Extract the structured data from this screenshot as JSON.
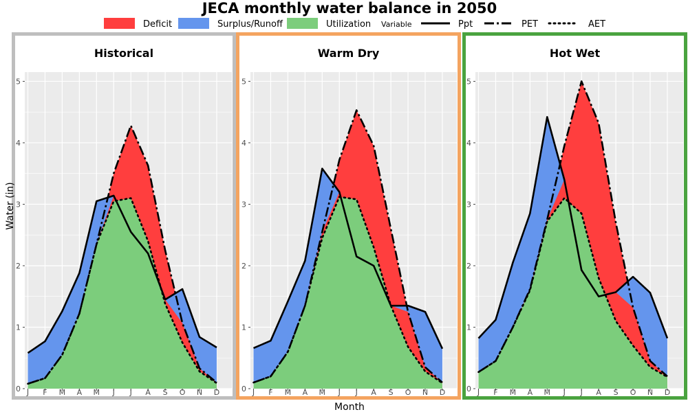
{
  "chart_data": {
    "type": "area",
    "title": "JECA monthly water balance in 2050",
    "xlabel": "Month",
    "ylabel": "Water (in)",
    "ylim": [
      0,
      5.15
    ],
    "yticks": [
      0,
      1,
      2,
      3,
      4,
      5
    ],
    "categories": [
      "J",
      "F",
      "M",
      "A",
      "M",
      "J",
      "J",
      "A",
      "S",
      "O",
      "N",
      "D"
    ],
    "legend": {
      "fill_entries": [
        {
          "label": "Deficit",
          "color": "#ff3e3e"
        },
        {
          "label": "Surplus/Runoff",
          "color": "#6495ed"
        },
        {
          "label": "Utilization",
          "color": "#7ccd7c"
        }
      ],
      "line_title": "Variable",
      "line_entries": [
        {
          "label": "Ppt",
          "style": "solid"
        },
        {
          "label": "PET",
          "style": "dashdot"
        },
        {
          "label": "AET",
          "style": "dotted"
        }
      ],
      "placement": "top"
    },
    "colors": {
      "deficit": "#ff3e3e",
      "surplus": "#6495ed",
      "utilization": "#7ccd7c",
      "panel_bg": "#ebebeb",
      "grid": "#ffffff"
    },
    "panels": [
      {
        "title": "Historical",
        "border_color": "#bebebe",
        "series": [
          {
            "name": "Ppt",
            "values": [
              0.58,
              0.77,
              1.26,
              1.88,
              3.05,
              3.14,
              2.55,
              2.2,
              1.45,
              1.62,
              0.84,
              0.67
            ]
          },
          {
            "name": "PET",
            "values": [
              0.08,
              0.17,
              0.55,
              1.22,
              2.35,
              3.5,
              4.28,
              3.63,
              2.25,
              1.07,
              0.33,
              0.1
            ]
          },
          {
            "name": "AET",
            "values": [
              0.08,
              0.17,
              0.55,
              1.22,
              2.35,
              3.05,
              3.1,
              2.4,
              1.38,
              0.75,
              0.28,
              0.09
            ]
          }
        ]
      },
      {
        "title": "Warm Dry",
        "border_color": "#f4a460",
        "series": [
          {
            "name": "Ppt",
            "values": [
              0.66,
              0.78,
              1.42,
              2.08,
              3.58,
              3.2,
              2.15,
              2.0,
              1.35,
              1.35,
              1.25,
              0.65
            ]
          },
          {
            "name": "PET",
            "values": [
              0.1,
              0.2,
              0.6,
              1.35,
              2.55,
              3.72,
              4.53,
              3.95,
              2.6,
              1.25,
              0.35,
              0.1
            ]
          },
          {
            "name": "AET",
            "values": [
              0.1,
              0.2,
              0.6,
              1.35,
              2.45,
              3.12,
              3.08,
              2.3,
              1.35,
              0.68,
              0.28,
              0.09
            ]
          }
        ]
      },
      {
        "title": "Hot Wet",
        "border_color": "#4aa33f",
        "series": [
          {
            "name": "Ppt",
            "values": [
              0.82,
              1.12,
              2.05,
              2.85,
              4.42,
              3.4,
              1.93,
              1.5,
              1.57,
              1.82,
              1.56,
              0.82
            ]
          },
          {
            "name": "PET",
            "values": [
              0.27,
              0.45,
              1.0,
              1.62,
              2.75,
              3.95,
              5.0,
              4.32,
              2.7,
              1.32,
              0.45,
              0.2
            ]
          },
          {
            "name": "AET",
            "values": [
              0.27,
              0.45,
              1.0,
              1.6,
              2.72,
              3.1,
              2.85,
              1.8,
              1.1,
              0.7,
              0.35,
              0.19
            ]
          }
        ]
      }
    ]
  }
}
